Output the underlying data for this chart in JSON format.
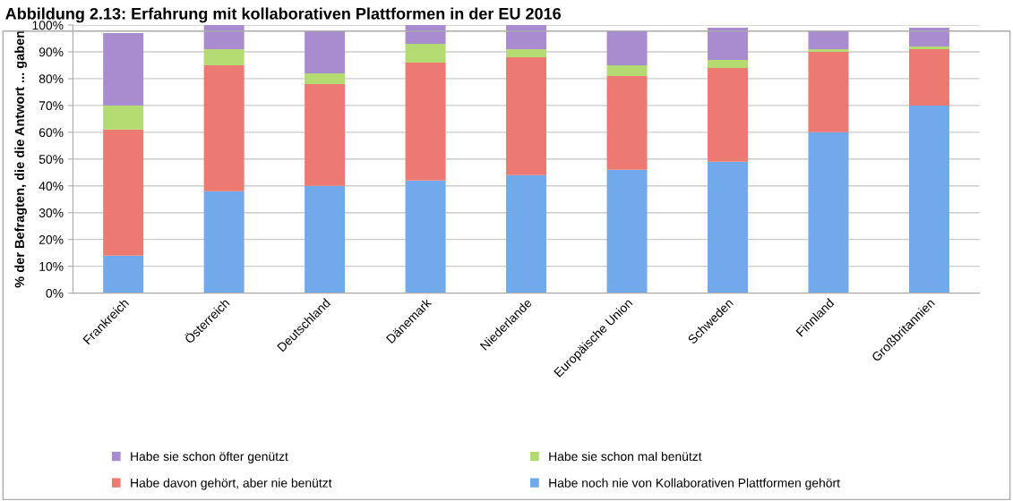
{
  "chart_data": {
    "type": "bar",
    "stacked": true,
    "title": "Abbildung 2.13: Erfahrung mit kollaborativen Plattformen in der EU 2016",
    "ylabel": "% der Befragten, die die Antwort ... gaben",
    "categories": [
      "Frankreich",
      "Österreich",
      "Deutschland",
      "Dänemark",
      "Niederlande",
      "Europäische Union",
      "Schweden",
      "Finnland",
      "Großbritannien"
    ],
    "series": [
      {
        "name": "Habe noch nie von Kollaborativen Plattformen gehört",
        "color": "#72a9ea",
        "values": [
          14,
          38,
          40,
          42,
          44,
          46,
          49,
          60,
          70
        ]
      },
      {
        "name": "Habe davon gehört, aber nie benützt",
        "color": "#ec7a72",
        "values": [
          47,
          47,
          38,
          44,
          44,
          35,
          35,
          30,
          21
        ]
      },
      {
        "name": "Habe sie schon mal benützt",
        "color": "#b4da72",
        "values": [
          9,
          6,
          4,
          7,
          3,
          4,
          3,
          1,
          1
        ]
      },
      {
        "name": "Habe sie schon öfter genützt",
        "color": "#a88ccf",
        "values": [
          27,
          9,
          16,
          7,
          9,
          13,
          12,
          7,
          7
        ]
      }
    ],
    "ylim": [
      0,
      100
    ],
    "yticks": [
      {
        "value": 0,
        "label": "0%"
      },
      {
        "value": 10,
        "label": "10%"
      },
      {
        "value": 20,
        "label": "20%"
      },
      {
        "value": 30,
        "label": "30%"
      },
      {
        "value": 40,
        "label": "40%"
      },
      {
        "value": 50,
        "label": "50%"
      },
      {
        "value": 60,
        "label": "60%"
      },
      {
        "value": 70,
        "label": "70%"
      },
      {
        "value": 80,
        "label": "80%"
      },
      {
        "value": 90,
        "label": "90%"
      },
      {
        "value": 100,
        "label": "100%"
      }
    ],
    "grid": "y",
    "legend": "bottom"
  }
}
